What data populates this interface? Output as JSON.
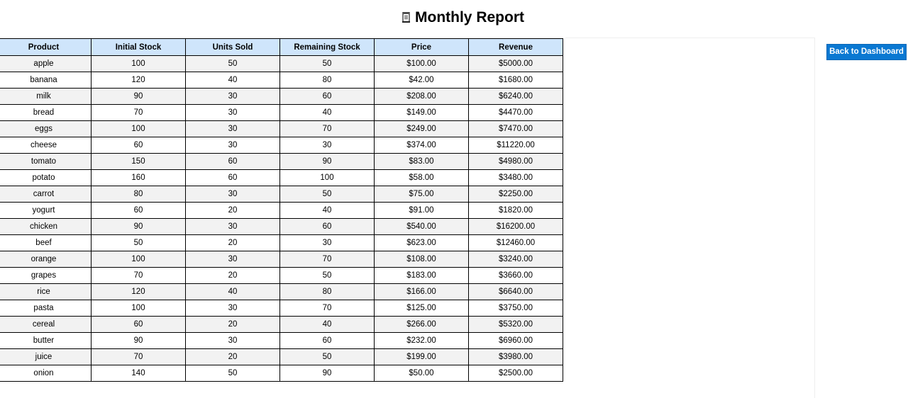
{
  "page": {
    "title": "Monthly Report",
    "title_icon": "ledger-icon"
  },
  "actions": {
    "back_label": "Back to Dashboard",
    "back_color": "#0a78d2"
  },
  "table": {
    "header_color": "#cfe5fb",
    "columns": [
      "Product",
      "Initial Stock",
      "Units Sold",
      "Remaining Stock",
      "Price",
      "Revenue"
    ],
    "rows": [
      [
        "apple",
        "100",
        "50",
        "50",
        "$100.00",
        "$5000.00"
      ],
      [
        "banana",
        "120",
        "40",
        "80",
        "$42.00",
        "$1680.00"
      ],
      [
        "milk",
        "90",
        "30",
        "60",
        "$208.00",
        "$6240.00"
      ],
      [
        "bread",
        "70",
        "30",
        "40",
        "$149.00",
        "$4470.00"
      ],
      [
        "eggs",
        "100",
        "30",
        "70",
        "$249.00",
        "$7470.00"
      ],
      [
        "cheese",
        "60",
        "30",
        "30",
        "$374.00",
        "$11220.00"
      ],
      [
        "tomato",
        "150",
        "60",
        "90",
        "$83.00",
        "$4980.00"
      ],
      [
        "potato",
        "160",
        "60",
        "100",
        "$58.00",
        "$3480.00"
      ],
      [
        "carrot",
        "80",
        "30",
        "50",
        "$75.00",
        "$2250.00"
      ],
      [
        "yogurt",
        "60",
        "20",
        "40",
        "$91.00",
        "$1820.00"
      ],
      [
        "chicken",
        "90",
        "30",
        "60",
        "$540.00",
        "$16200.00"
      ],
      [
        "beef",
        "50",
        "20",
        "30",
        "$623.00",
        "$12460.00"
      ],
      [
        "orange",
        "100",
        "30",
        "70",
        "$108.00",
        "$3240.00"
      ],
      [
        "grapes",
        "70",
        "20",
        "50",
        "$183.00",
        "$3660.00"
      ],
      [
        "rice",
        "120",
        "40",
        "80",
        "$166.00",
        "$6640.00"
      ],
      [
        "pasta",
        "100",
        "30",
        "70",
        "$125.00",
        "$3750.00"
      ],
      [
        "cereal",
        "60",
        "20",
        "40",
        "$266.00",
        "$5320.00"
      ],
      [
        "butter",
        "90",
        "30",
        "60",
        "$232.00",
        "$6960.00"
      ],
      [
        "juice",
        "70",
        "20",
        "50",
        "$199.00",
        "$3980.00"
      ],
      [
        "onion",
        "140",
        "50",
        "90",
        "$50.00",
        "$2500.00"
      ]
    ]
  }
}
